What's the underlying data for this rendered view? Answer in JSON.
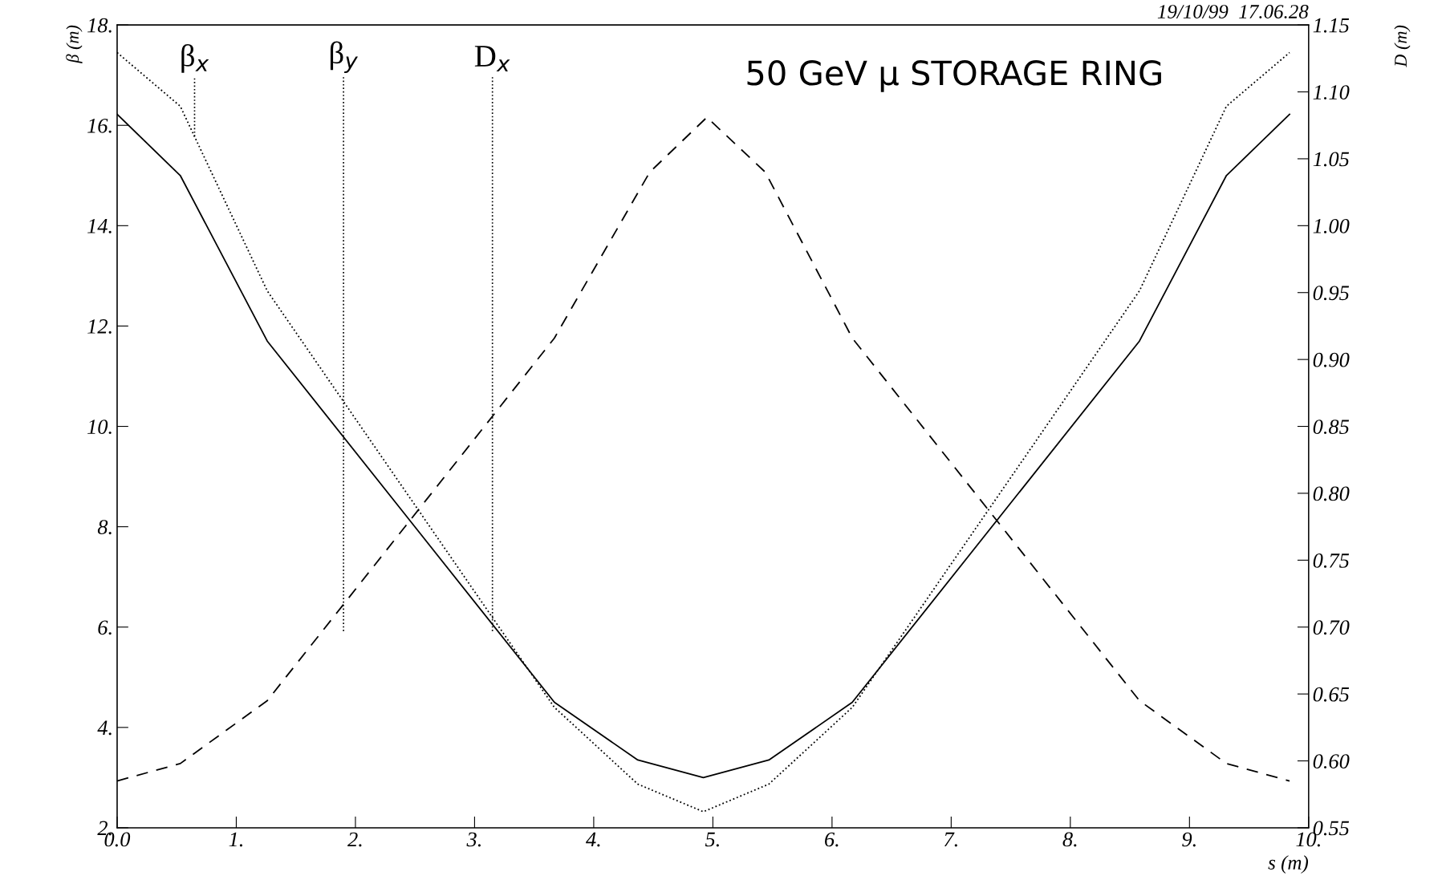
{
  "chart_data": {
    "type": "line",
    "xlabel": "s (m)",
    "ylabel": "β (m)",
    "y2label": "D (m)",
    "x": [
      0,
      0.53,
      1.26,
      3.67,
      4.37,
      4.92,
      5.47,
      6.17,
      8.58,
      9.31,
      9.84
    ],
    "series": [
      {
        "color": "#000000",
        "line_style": "solid",
        "values": [
          16.22,
          15.0,
          11.7,
          4.5,
          3.35,
          3.0,
          3.35,
          4.5,
          11.7,
          15.0,
          16.22
        ]
      },
      {
        "color": "#000000",
        "line_style": "dotted",
        "values": [
          17.45,
          16.38,
          12.7,
          4.4,
          2.87,
          2.32,
          2.87,
          4.4,
          12.7,
          16.38,
          17.45
        ]
      },
      {
        "color": "#000000",
        "line_style": "dashed",
        "axis": "y2",
        "x": [
          0,
          0.53,
          1.26,
          3.67,
          4.47,
          4.95,
          5.44,
          6.17,
          8.58,
          9.31,
          9.84
        ],
        "values": [
          0.585,
          0.598,
          0.645,
          0.916,
          1.04,
          1.081,
          1.04,
          0.916,
          0.645,
          0.598,
          0.585
        ]
      }
    ],
    "xlim": [
      0,
      10
    ],
    "xticks": [
      {
        "value": 0,
        "label": "0.0"
      },
      {
        "value": 1,
        "label": "1."
      },
      {
        "value": 2,
        "label": "2."
      },
      {
        "value": 3,
        "label": "3."
      },
      {
        "value": 4,
        "label": "4."
      },
      {
        "value": 5,
        "label": "5."
      },
      {
        "value": 6,
        "label": "6."
      },
      {
        "value": 7,
        "label": "7."
      },
      {
        "value": 8,
        "label": "8."
      },
      {
        "value": 9,
        "label": "9."
      },
      {
        "value": 10,
        "label": "10."
      }
    ],
    "ylim": [
      2,
      18
    ],
    "yticks": [
      {
        "value": 2,
        "label": "2."
      },
      {
        "value": 4,
        "label": "4."
      },
      {
        "value": 6,
        "label": "6."
      },
      {
        "value": 8,
        "label": "8."
      },
      {
        "value": 10,
        "label": "10."
      },
      {
        "value": 12,
        "label": "12."
      },
      {
        "value": 14,
        "label": "14."
      },
      {
        "value": 16,
        "label": "16."
      },
      {
        "value": 18,
        "label": "18."
      }
    ],
    "y2lim": [
      0.55,
      1.15
    ],
    "y2ticks": [
      {
        "value": 0.55,
        "label": "0.55"
      },
      {
        "value": 0.6,
        "label": "0.60"
      },
      {
        "value": 0.65,
        "label": "0.65"
      },
      {
        "value": 0.7,
        "label": "0.70"
      },
      {
        "value": 0.75,
        "label": "0.75"
      },
      {
        "value": 0.8,
        "label": "0.80"
      },
      {
        "value": 0.85,
        "label": "0.85"
      },
      {
        "value": 0.9,
        "label": "0.90"
      },
      {
        "value": 0.95,
        "label": "0.95"
      },
      {
        "value": 1.0,
        "label": "1.00"
      },
      {
        "value": 1.05,
        "label": "1.05"
      },
      {
        "value": 1.1,
        "label": "1.10"
      },
      {
        "value": 1.15,
        "label": "1.15"
      }
    ],
    "annotations": [
      {
        "text": "β$_{x}$",
        "x": 0.65,
        "y": 15.78
      },
      "β$_{y}$",
      "D$_{x}$",
      "50 GeV μ STORAGE RING",
      "19/10/99  17.06.28"
    ],
    "grid": false,
    "legend": false
  }
}
